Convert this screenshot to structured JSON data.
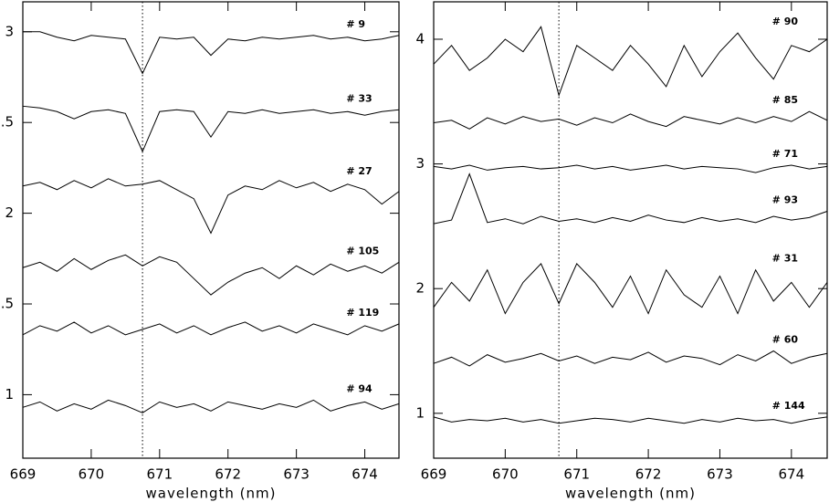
{
  "chart_data": [
    {
      "type": "line",
      "xlabel": "wavelength (nm)",
      "xlim": [
        669,
        674.5
      ],
      "ylim": [
        0.65,
        3.165
      ],
      "xticks": [
        669,
        670,
        671,
        672,
        673,
        674
      ],
      "yticks": [
        1,
        {
          "value": 1.5,
          "label": ".5"
        },
        2,
        {
          "value": 2.5,
          "label": ".5"
        },
        3
      ],
      "ref_line": 670.75,
      "x": [
        669,
        669.25,
        669.5,
        669.75,
        670,
        670.25,
        670.5,
        670.75,
        671,
        671.25,
        671.5,
        671.75,
        672,
        672.25,
        672.5,
        672.75,
        673,
        673.25,
        673.5,
        673.75,
        674,
        674.25,
        674.5
      ],
      "series": [
        {
          "name": "# 9",
          "color": "#000000",
          "values": [
            3.0,
            3.0,
            2.97,
            2.95,
            2.98,
            2.97,
            2.96,
            2.77,
            2.97,
            2.96,
            2.97,
            2.87,
            2.96,
            2.95,
            2.97,
            2.96,
            2.97,
            2.98,
            2.96,
            2.97,
            2.95,
            2.96,
            2.98
          ]
        },
        {
          "name": "# 33",
          "color": "#000000",
          "values": [
            2.59,
            2.58,
            2.56,
            2.52,
            2.56,
            2.57,
            2.55,
            2.34,
            2.56,
            2.57,
            2.56,
            2.42,
            2.56,
            2.55,
            2.57,
            2.55,
            2.56,
            2.57,
            2.55,
            2.56,
            2.54,
            2.56,
            2.57
          ]
        },
        {
          "name": "# 27",
          "color": "#000000",
          "values": [
            2.15,
            2.17,
            2.13,
            2.18,
            2.14,
            2.19,
            2.15,
            2.16,
            2.18,
            2.13,
            2.08,
            1.89,
            2.1,
            2.15,
            2.13,
            2.18,
            2.14,
            2.17,
            2.12,
            2.16,
            2.13,
            2.05,
            2.12
          ]
        },
        {
          "name": "# 105",
          "color": "#000000",
          "values": [
            1.7,
            1.73,
            1.68,
            1.75,
            1.69,
            1.74,
            1.77,
            1.71,
            1.76,
            1.73,
            1.64,
            1.55,
            1.62,
            1.67,
            1.7,
            1.64,
            1.71,
            1.66,
            1.72,
            1.68,
            1.71,
            1.67,
            1.73
          ]
        },
        {
          "name": "# 119",
          "color": "#000000",
          "values": [
            1.33,
            1.38,
            1.35,
            1.4,
            1.34,
            1.38,
            1.33,
            1.36,
            1.39,
            1.34,
            1.38,
            1.33,
            1.37,
            1.4,
            1.35,
            1.38,
            1.34,
            1.39,
            1.36,
            1.33,
            1.38,
            1.35,
            1.39
          ]
        },
        {
          "name": "# 94",
          "color": "#000000",
          "values": [
            0.93,
            0.96,
            0.91,
            0.95,
            0.92,
            0.97,
            0.94,
            0.9,
            0.96,
            0.93,
            0.95,
            0.91,
            0.96,
            0.94,
            0.92,
            0.95,
            0.93,
            0.97,
            0.91,
            0.94,
            0.96,
            0.92,
            0.95
          ]
        }
      ]
    },
    {
      "type": "line",
      "xlabel": "wavelength (nm)",
      "xlim": [
        669,
        674.5
      ],
      "ylim": [
        0.64,
        4.3
      ],
      "xticks": [
        669,
        670,
        671,
        672,
        673,
        674
      ],
      "yticks": [
        1,
        2,
        3,
        4
      ],
      "ref_line": 670.75,
      "x": [
        669,
        669.25,
        669.5,
        669.75,
        670,
        670.25,
        670.5,
        670.75,
        671,
        671.25,
        671.5,
        671.75,
        672,
        672.25,
        672.5,
        672.75,
        673,
        673.25,
        673.5,
        673.75,
        674,
        674.25,
        674.5
      ],
      "series": [
        {
          "name": "# 90",
          "color": "#000000",
          "values": [
            3.8,
            3.95,
            3.75,
            3.85,
            4.0,
            3.9,
            4.1,
            3.55,
            3.95,
            3.85,
            3.75,
            3.95,
            3.8,
            3.62,
            3.95,
            3.7,
            3.9,
            4.05,
            3.85,
            3.68,
            3.95,
            3.9,
            4.0
          ]
        },
        {
          "name": "# 85",
          "color": "#000000",
          "values": [
            3.33,
            3.35,
            3.28,
            3.37,
            3.32,
            3.38,
            3.34,
            3.36,
            3.31,
            3.37,
            3.33,
            3.4,
            3.34,
            3.3,
            3.38,
            3.35,
            3.32,
            3.37,
            3.33,
            3.38,
            3.34,
            3.42,
            3.35
          ]
        },
        {
          "name": "# 71",
          "color": "#000000",
          "values": [
            2.98,
            2.96,
            2.99,
            2.95,
            2.97,
            2.98,
            2.96,
            2.97,
            2.99,
            2.96,
            2.98,
            2.95,
            2.97,
            2.99,
            2.96,
            2.98,
            2.97,
            2.96,
            2.93,
            2.97,
            2.99,
            2.96,
            2.98
          ]
        },
        {
          "name": "# 93",
          "color": "#000000",
          "values": [
            2.52,
            2.55,
            2.92,
            2.53,
            2.56,
            2.52,
            2.58,
            2.54,
            2.56,
            2.53,
            2.57,
            2.54,
            2.59,
            2.55,
            2.53,
            2.57,
            2.54,
            2.56,
            2.53,
            2.58,
            2.55,
            2.57,
            2.62
          ]
        },
        {
          "name": "# 31",
          "color": "#000000",
          "values": [
            1.85,
            2.05,
            1.9,
            2.15,
            1.8,
            2.05,
            2.2,
            1.88,
            2.2,
            2.05,
            1.85,
            2.1,
            1.8,
            2.15,
            1.95,
            1.85,
            2.1,
            1.8,
            2.15,
            1.9,
            2.05,
            1.85,
            2.05
          ]
        },
        {
          "name": "# 60",
          "color": "#000000",
          "values": [
            1.4,
            1.45,
            1.38,
            1.47,
            1.41,
            1.44,
            1.48,
            1.42,
            1.46,
            1.4,
            1.45,
            1.43,
            1.49,
            1.41,
            1.46,
            1.44,
            1.39,
            1.47,
            1.42,
            1.5,
            1.4,
            1.45,
            1.48
          ]
        },
        {
          "name": "# 144",
          "color": "#000000",
          "values": [
            0.97,
            0.93,
            0.95,
            0.94,
            0.96,
            0.93,
            0.95,
            0.92,
            0.94,
            0.96,
            0.95,
            0.93,
            0.96,
            0.94,
            0.92,
            0.95,
            0.93,
            0.96,
            0.94,
            0.95,
            0.92,
            0.95,
            0.97
          ]
        }
      ]
    }
  ]
}
